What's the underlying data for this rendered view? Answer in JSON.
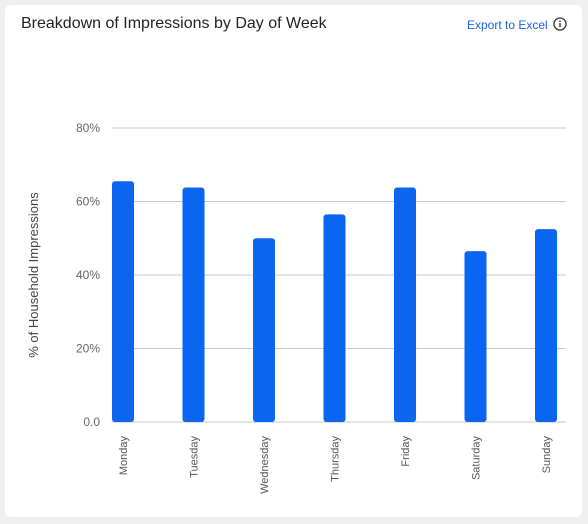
{
  "card": {
    "title": "Breakdown of Impressions by Day of Week",
    "export_label": "Export to Excel",
    "info_icon": "info-circle-icon"
  },
  "chart_data": {
    "type": "bar",
    "categories": [
      "Monday",
      "Tuesday",
      "Wednesday",
      "Thursday",
      "Friday",
      "Saturday",
      "Sunday"
    ],
    "values": [
      65.5,
      63.8,
      50,
      56.5,
      63.8,
      46.5,
      52.5
    ],
    "ylabel": "% of Household Impressions",
    "yticks": [
      "0.0",
      "20%",
      "40%",
      "60%",
      "80%"
    ],
    "ytick_values": [
      0,
      20,
      40,
      60,
      80
    ],
    "ylim": [
      0,
      80
    ],
    "bar_color": "#0a66f0",
    "grid": true
  }
}
